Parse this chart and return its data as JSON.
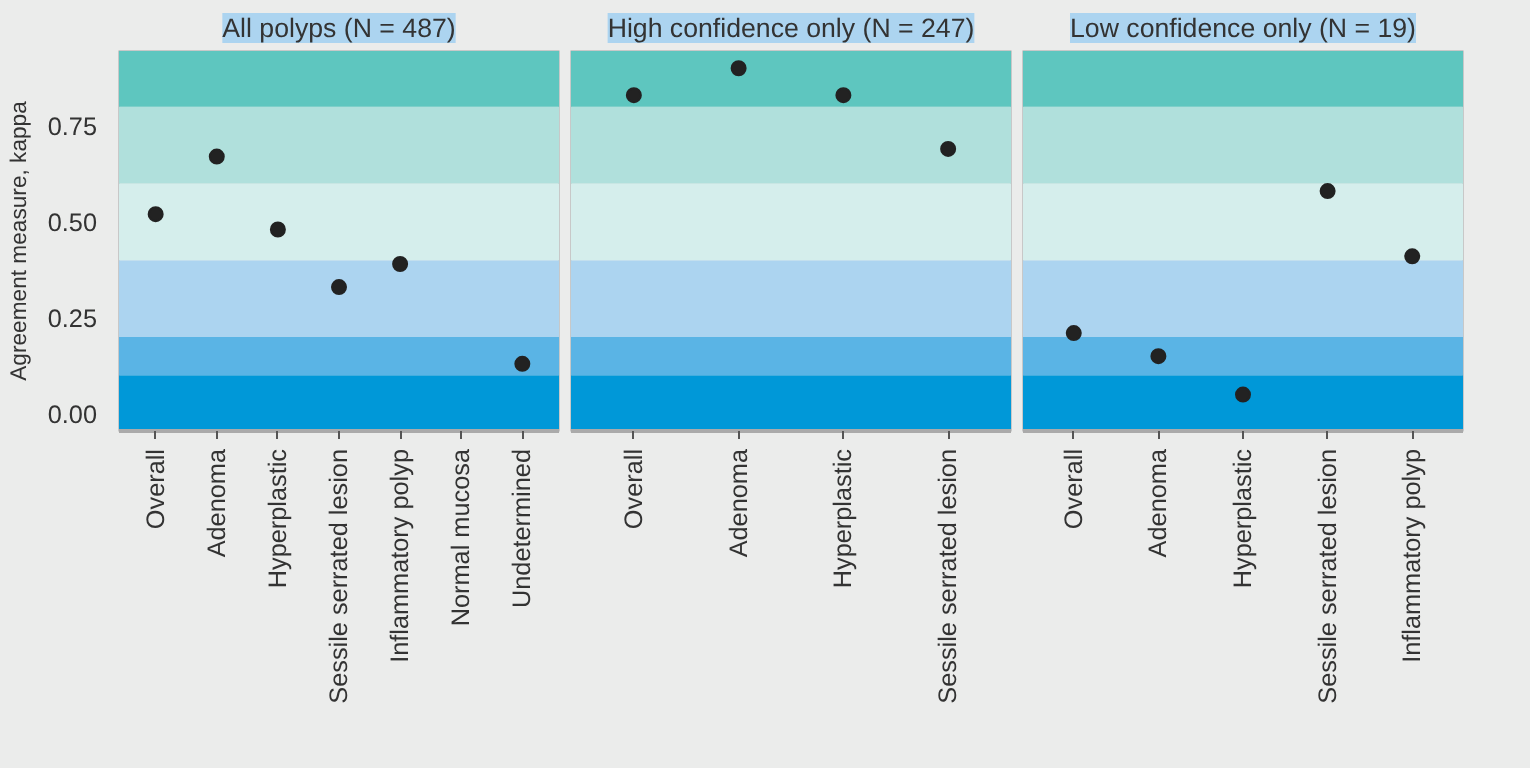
{
  "chart_data": [
    {
      "type": "scatter",
      "title": "All polyps (N = 487)",
      "ylabel": "Agreement measure, kappa",
      "marker": "circle",
      "categories": [
        "Overall",
        "Adenoma",
        "Hyperplastic",
        "Sessile serrated lesion",
        "Inflammatory polyp",
        "Normal mucosa",
        "Undetermined"
      ],
      "series": [
        {
          "color": "#222222",
          "values": [
            0.52,
            0.67,
            0.48,
            0.33,
            0.39,
            null,
            0.13
          ]
        }
      ],
      "ylim": [
        -0.045,
        0.945
      ],
      "yticks": [
        {
          "value": 0,
          "label": "0.00"
        },
        {
          "value": 0.25,
          "label": "0.25"
        },
        {
          "value": 0.5,
          "label": "0.50"
        },
        {
          "value": 0.75,
          "label": "0.75"
        }
      ],
      "bands": [
        {
          "axis": "y",
          "from": -0.045,
          "to": 0.1,
          "color": "#0098d8"
        },
        {
          "axis": "y",
          "from": 0.1,
          "to": 0.2,
          "color": "#5ab4e5"
        },
        {
          "axis": "y",
          "from": 0.2,
          "to": 0.4,
          "color": "#acd4f0"
        },
        {
          "axis": "y",
          "from": 0.4,
          "to": 0.6,
          "color": "#d5eeec"
        },
        {
          "axis": "y",
          "from": 0.6,
          "to": 0.8,
          "color": "#b0e0dc"
        },
        {
          "axis": "y",
          "from": 0.8,
          "to": 0.945,
          "color": "#5ec6bf"
        }
      ]
    },
    {
      "type": "scatter",
      "title": "High confidence only (N = 247)",
      "marker": "circle",
      "tick_labels": "x",
      "categories": [
        "Overall",
        "Adenoma",
        "Hyperplastic",
        "Sessile serrated lesion"
      ],
      "series": [
        {
          "color": "#222222",
          "values": [
            0.83,
            0.9,
            0.83,
            0.69
          ]
        }
      ],
      "ylim": [
        -0.045,
        0.945
      ],
      "bands": [
        {
          "axis": "y",
          "from": -0.045,
          "to": 0.1,
          "color": "#0098d8"
        },
        {
          "axis": "y",
          "from": 0.1,
          "to": 0.2,
          "color": "#5ab4e5"
        },
        {
          "axis": "y",
          "from": 0.2,
          "to": 0.4,
          "color": "#acd4f0"
        },
        {
          "axis": "y",
          "from": 0.4,
          "to": 0.6,
          "color": "#d5eeec"
        },
        {
          "axis": "y",
          "from": 0.6,
          "to": 0.8,
          "color": "#b0e0dc"
        },
        {
          "axis": "y",
          "from": 0.8,
          "to": 0.945,
          "color": "#5ec6bf"
        }
      ]
    },
    {
      "type": "scatter",
      "title": "Low confidence only (N = 19)",
      "marker": "circle",
      "tick_labels": "x",
      "categories": [
        "Overall",
        "Adenoma",
        "Hyperplastic",
        "Sessile serrated lesion",
        "Inflammatory polyp"
      ],
      "series": [
        {
          "color": "#222222",
          "values": [
            0.21,
            0.15,
            0.05,
            0.58,
            0.41
          ]
        }
      ],
      "ylim": [
        -0.045,
        0.945
      ],
      "bands": [
        {
          "axis": "y",
          "from": -0.045,
          "to": 0.1,
          "color": "#0098d8"
        },
        {
          "axis": "y",
          "from": 0.1,
          "to": 0.2,
          "color": "#5ab4e5"
        },
        {
          "axis": "y",
          "from": 0.2,
          "to": 0.4,
          "color": "#acd4f0"
        },
        {
          "axis": "y",
          "from": 0.4,
          "to": 0.6,
          "color": "#d5eeec"
        },
        {
          "axis": "y",
          "from": 0.6,
          "to": 0.8,
          "color": "#b0e0dc"
        },
        {
          "axis": "y",
          "from": 0.8,
          "to": 0.945,
          "color": "#5ec6bf"
        }
      ]
    }
  ]
}
